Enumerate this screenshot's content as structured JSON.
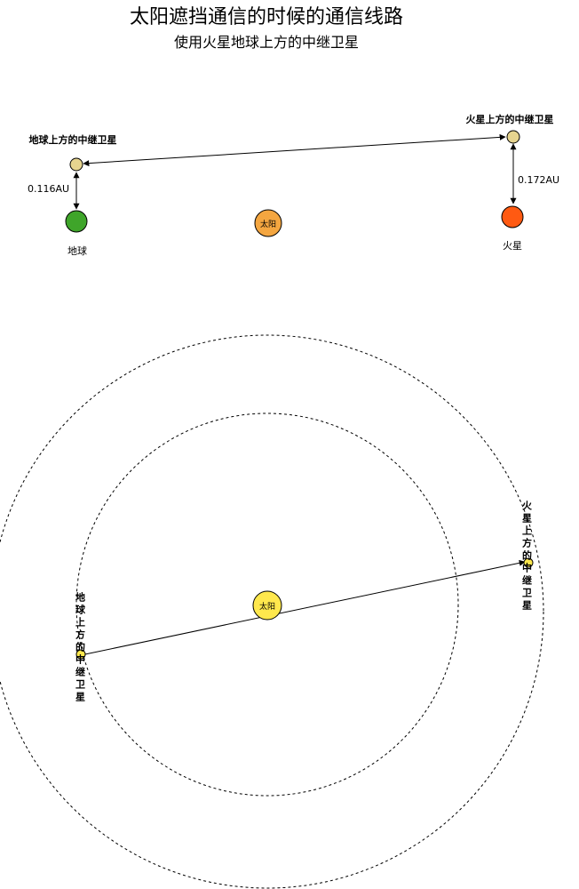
{
  "title": "太阳遮挡通信的时候的通信线路",
  "subtitle": "使用火星地球上方的中继卫星",
  "top_view": {
    "earth_relay_label": "地球上方的中继卫星",
    "mars_relay_label": "火星上方的中继卫星",
    "earth_label": "地球",
    "mars_label": "火星",
    "sun_label": "太阳",
    "earth_distance": "0.116AU",
    "mars_distance": "0.172AU"
  },
  "orbit_view": {
    "sun_label": "太阳",
    "earth_relay_label": "地球上方的中继卫星",
    "mars_relay_label": "火星上方的中继卫星"
  },
  "colors": {
    "earth": "#3fa52a",
    "mars": "#ff5a12",
    "sun_top": "#f4a640",
    "sun_orbit": "#ffe84d",
    "relay": "#e6d48f"
  }
}
